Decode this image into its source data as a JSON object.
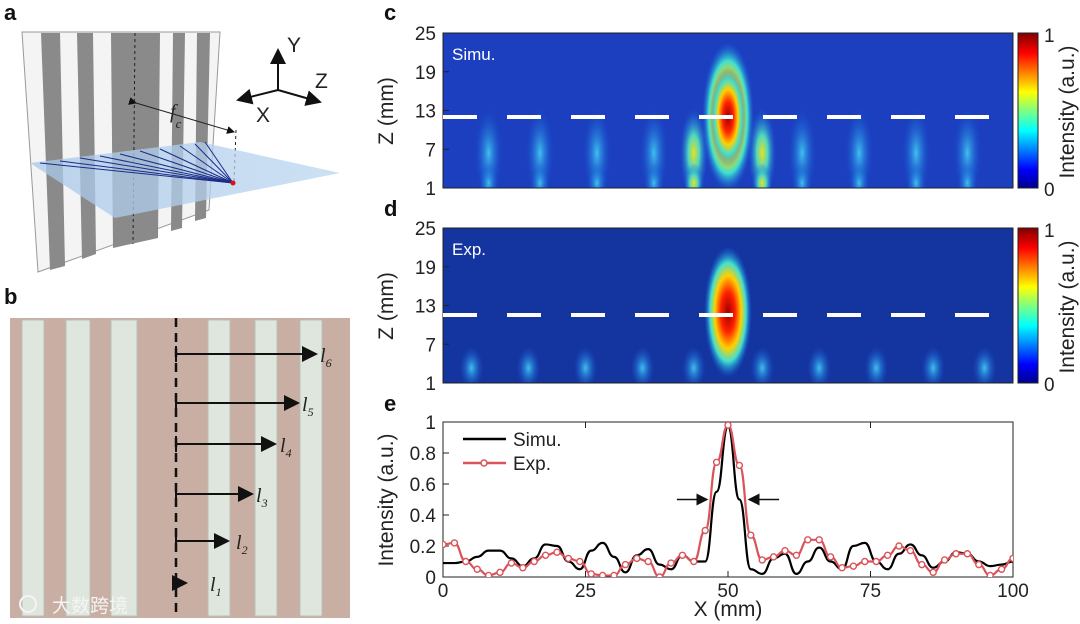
{
  "panels": {
    "a": "a",
    "b": "b",
    "c": "c",
    "d": "d",
    "e": "e"
  },
  "panel_a": {
    "axes": {
      "x": "X",
      "y": "Y",
      "z": "Z"
    },
    "focal_label": "f",
    "focal_sub": "c"
  },
  "panel_b": {
    "lengths": [
      {
        "l": "l",
        "sub": "1"
      },
      {
        "l": "l",
        "sub": "2"
      },
      {
        "l": "l",
        "sub": "3"
      },
      {
        "l": "l",
        "sub": "4"
      },
      {
        "l": "l",
        "sub": "5"
      },
      {
        "l": "l",
        "sub": "6"
      }
    ]
  },
  "watermark": "大数跨境",
  "colors": {
    "simu": "#000000",
    "exp": "#d9545a"
  },
  "chart_data": [
    {
      "type": "heatmap",
      "panel": "c",
      "tag": "Simu.",
      "ylabel": "Z (mm)",
      "yticks": [
        "25",
        "19",
        "13",
        "7",
        "1"
      ],
      "ylim": [
        1,
        25
      ],
      "xlim": [
        0,
        100
      ],
      "colorbar": {
        "label": "Intensity (a.u.)",
        "min": "0",
        "max": "1"
      },
      "dashed_line_z": 12
    },
    {
      "type": "heatmap",
      "panel": "d",
      "tag": "Exp.",
      "ylabel": "Z (mm)",
      "yticks": [
        "25",
        "19",
        "13",
        "7",
        "1"
      ],
      "ylim": [
        1,
        25
      ],
      "xlim": [
        0,
        100
      ],
      "colorbar": {
        "label": "Intensity (a.u.)",
        "min": "0",
        "max": "1"
      },
      "dashed_line_z": 12
    },
    {
      "type": "line",
      "panel": "e",
      "xlabel": "X (mm)",
      "ylabel": "Intensity (a.u.)",
      "xlim": [
        0,
        100
      ],
      "ylim": [
        0,
        1
      ],
      "xticks": [
        "0",
        "25",
        "50",
        "75",
        "100"
      ],
      "yticks": [
        "0",
        "0.2",
        "0.4",
        "0.6",
        "0.8",
        "1"
      ],
      "legend": {
        "position": "top-left",
        "entries": [
          "Simu.",
          "Exp."
        ]
      },
      "x": [
        0,
        2,
        4,
        6,
        8,
        10,
        12,
        14,
        16,
        18,
        20,
        22,
        24,
        26,
        28,
        30,
        32,
        34,
        36,
        38,
        40,
        42,
        44,
        46,
        48,
        50,
        52,
        54,
        56,
        58,
        60,
        62,
        64,
        66,
        68,
        70,
        72,
        74,
        76,
        78,
        80,
        82,
        84,
        86,
        88,
        90,
        92,
        94,
        96,
        98,
        100
      ],
      "series": [
        {
          "name": "Simu.",
          "values": [
            0.09,
            0.09,
            0.1,
            0.13,
            0.17,
            0.17,
            0.12,
            0.07,
            0.12,
            0.21,
            0.2,
            0.1,
            0.05,
            0.17,
            0.22,
            0.13,
            0.03,
            0.14,
            0.18,
            0.08,
            0.05,
            0.14,
            0.1,
            0.1,
            0.55,
            0.97,
            0.5,
            0.05,
            0.02,
            0.12,
            0.15,
            0.02,
            0.1,
            0.19,
            0.1,
            0.05,
            0.2,
            0.22,
            0.1,
            0.05,
            0.15,
            0.21,
            0.14,
            0.06,
            0.1,
            0.16,
            0.15,
            0.1,
            0.07,
            0.08,
            0.1
          ]
        },
        {
          "name": "Exp.",
          "values": [
            0.21,
            0.22,
            0.1,
            0.05,
            0.01,
            0.03,
            0.09,
            0.06,
            0.1,
            0.14,
            0.16,
            0.12,
            0.1,
            0.02,
            0.01,
            0.01,
            0.08,
            0.12,
            0.1,
            0.0,
            0.09,
            0.14,
            0.1,
            0.3,
            0.74,
            0.98,
            0.72,
            0.27,
            0.11,
            0.13,
            0.17,
            0.14,
            0.24,
            0.24,
            0.13,
            0.06,
            0.07,
            0.1,
            0.1,
            0.14,
            0.2,
            0.17,
            0.08,
            0.03,
            0.11,
            0.15,
            0.15,
            0.08,
            0.01,
            0.05,
            0.12
          ]
        }
      ],
      "fwhm_arrows_x": [
        47,
        53
      ]
    }
  ]
}
